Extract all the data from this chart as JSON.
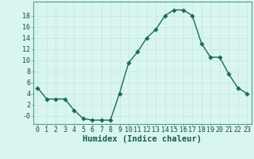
{
  "xlabel": "Humidex (Indice chaleur)",
  "x_values": [
    0,
    1,
    2,
    3,
    4,
    5,
    6,
    7,
    8,
    9,
    10,
    11,
    12,
    13,
    14,
    15,
    16,
    17,
    18,
    19,
    20,
    21,
    22,
    23
  ],
  "y_values": [
    5,
    3,
    3,
    3,
    1,
    -0.5,
    -0.8,
    -0.8,
    -0.8,
    4,
    9.5,
    11.5,
    14,
    15.5,
    18,
    19,
    19,
    18,
    13,
    10.5,
    10.5,
    7.5,
    5,
    4
  ],
  "line_color": "#1a6b5a",
  "marker_color": "#1a6b5a",
  "bg_color": "#d8f5f0",
  "grid_color": "#c8e8e0",
  "grid_color_minor": "#e4f5f2",
  "xlim": [
    -0.5,
    23.5
  ],
  "ylim": [
    -1.5,
    20.5
  ],
  "yticks": [
    0,
    2,
    4,
    6,
    8,
    10,
    12,
    14,
    16,
    18
  ],
  "ytick_labels": [
    "-0",
    "2",
    "4",
    "6",
    "8",
    "10",
    "12",
    "14",
    "16",
    "18"
  ],
  "xticks": [
    0,
    1,
    2,
    3,
    4,
    5,
    6,
    7,
    8,
    9,
    10,
    11,
    12,
    13,
    14,
    15,
    16,
    17,
    18,
    19,
    20,
    21,
    22,
    23
  ],
  "tick_fontsize": 6,
  "xlabel_fontsize": 7.5,
  "linewidth": 1.0,
  "markersize": 2.8
}
